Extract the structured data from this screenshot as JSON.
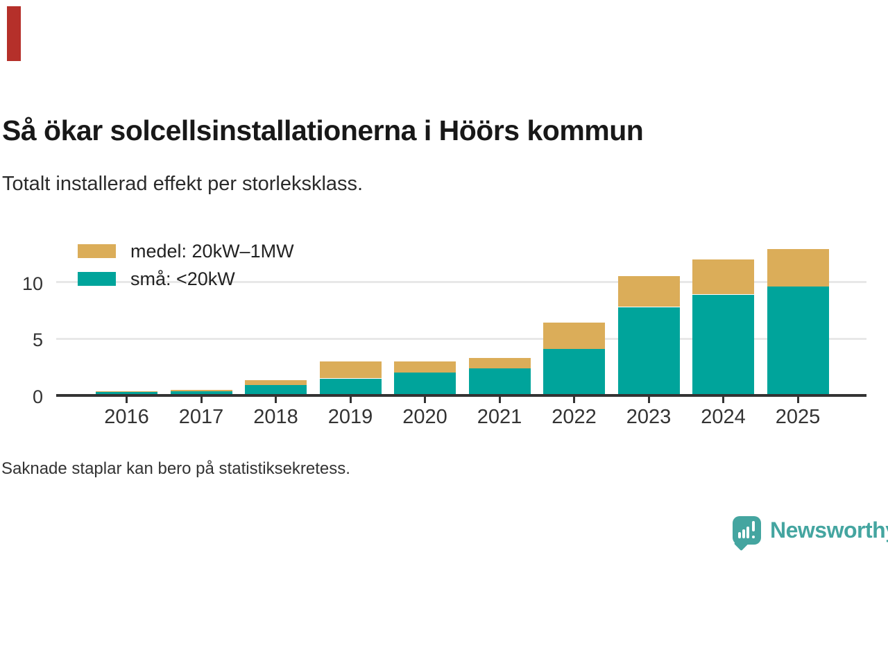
{
  "colors": {
    "accent_ribbon": "#b5302a",
    "small_series": "#00a49b",
    "medium_series": "#dbad59",
    "gridline": "#e8e8e8",
    "axis": "#333333",
    "logo_teal": "#44a5a0"
  },
  "header": {
    "title": "Så ökar solcellsinstallationerna i Höörs kommun",
    "subtitle": "Totalt installerad effekt per storleksklass."
  },
  "footnote": "Saknade staplar kan bero på statistiksekretess.",
  "logo": {
    "text": "Newsworthy"
  },
  "chart_data": {
    "type": "bar",
    "stacked": true,
    "title": "Så ökar solcellsinstallationerna i Höörs kommun",
    "subtitle": "Totalt installerad effekt per storleksklass.",
    "categories": [
      "2016",
      "2017",
      "2018",
      "2019",
      "2020",
      "2021",
      "2022",
      "2023",
      "2024",
      "2025"
    ],
    "series": [
      {
        "name": "små: <20kW",
        "color": "#00a49b",
        "values": [
          0.3,
          0.35,
          0.9,
          1.5,
          2.0,
          2.4,
          4.1,
          7.8,
          8.9,
          9.6
        ]
      },
      {
        "name": "medel: 20kW–1MW",
        "color": "#dbad59",
        "values": [
          0.1,
          0.15,
          0.45,
          1.5,
          1.0,
          0.9,
          2.3,
          2.7,
          3.1,
          3.3
        ]
      }
    ],
    "totals": [
      0.4,
      0.5,
      1.35,
      3.0,
      3.0,
      3.3,
      6.4,
      10.5,
      12.0,
      12.9
    ],
    "xlabel": "",
    "ylabel": "",
    "yticks": [
      0,
      5,
      10
    ],
    "ylim": [
      0,
      13.5
    ],
    "grid": true,
    "legend_position": "top-left",
    "legend_order": [
      "medel: 20kW–1MW",
      "små: <20kW"
    ]
  }
}
